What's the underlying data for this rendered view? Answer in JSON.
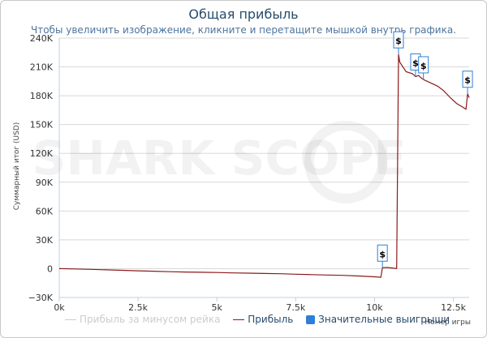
{
  "title": "Общая прибыль",
  "subtitle": "Чтобы увеличить изображение, кликните и перетащите мышкой внутрь графика.",
  "watermark": "SHARK SCOPE",
  "colors": {
    "profit_line": "#8b1a1a",
    "no_rake_line": "#cccccc",
    "big_wins": "#2f7ed8",
    "flag_border": "#2f7ed8"
  },
  "legend": {
    "no_rake": "Прибыль за минусом рейка",
    "profit": "Прибыль",
    "big_wins": "Значительные выигрыши"
  },
  "chart_data": {
    "type": "line",
    "title": "Общая прибыль",
    "xlabel": "Номер игры",
    "ylabel": "Суммарный итог (USD)",
    "xlim": [
      0,
      13000
    ],
    "ylim": [
      -30000,
      240000
    ],
    "x_ticks": [
      0,
      2500,
      5000,
      7500,
      10000,
      12500
    ],
    "x_tick_labels": [
      "0k",
      "2.5k",
      "5k",
      "7.5k",
      "10k",
      "12.5k"
    ],
    "y_ticks": [
      -30000,
      0,
      30000,
      60000,
      90000,
      120000,
      150000,
      180000,
      210000,
      240000
    ],
    "y_tick_labels": [
      "−30K",
      "0",
      "30K",
      "60K",
      "90K",
      "120K",
      "150K",
      "180K",
      "210K",
      "240K"
    ],
    "grid": true,
    "legend_position": "bottom",
    "series": [
      {
        "name": "Прибыль",
        "x": [
          0,
          500,
          1000,
          1500,
          2000,
          2500,
          3000,
          3500,
          4000,
          4500,
          5000,
          5500,
          6000,
          6500,
          7000,
          7500,
          8000,
          8500,
          9000,
          9500,
          10000,
          10200,
          10250,
          10400,
          10600,
          10700,
          10760,
          10800,
          10900,
          11000,
          11200,
          11300,
          11400,
          11500,
          11600,
          11800,
          12000,
          12200,
          12400,
          12600,
          12800,
          12900,
          12950,
          13000
        ],
        "y": [
          0,
          -300,
          -700,
          -1200,
          -1700,
          -2200,
          -2700,
          -3200,
          -3500,
          -3800,
          -4000,
          -4400,
          -4700,
          -5000,
          -5300,
          -5800,
          -6200,
          -6600,
          -7000,
          -7600,
          -8500,
          -9000,
          1000,
          1200,
          500,
          200,
          223000,
          215000,
          210000,
          205000,
          203000,
          200000,
          201000,
          198000,
          196000,
          193000,
          190000,
          185000,
          178000,
          172000,
          168000,
          166000,
          182000,
          178000
        ]
      }
    ],
    "big_wins": [
      {
        "label": "$",
        "x": 10250,
        "y": 1000
      },
      {
        "label": "$",
        "x": 10760,
        "y": 223000
      },
      {
        "label": "$",
        "x": 11300,
        "y": 200000
      },
      {
        "label": "$",
        "x": 11550,
        "y": 197000
      },
      {
        "label": "$",
        "x": 12950,
        "y": 182000
      }
    ]
  }
}
